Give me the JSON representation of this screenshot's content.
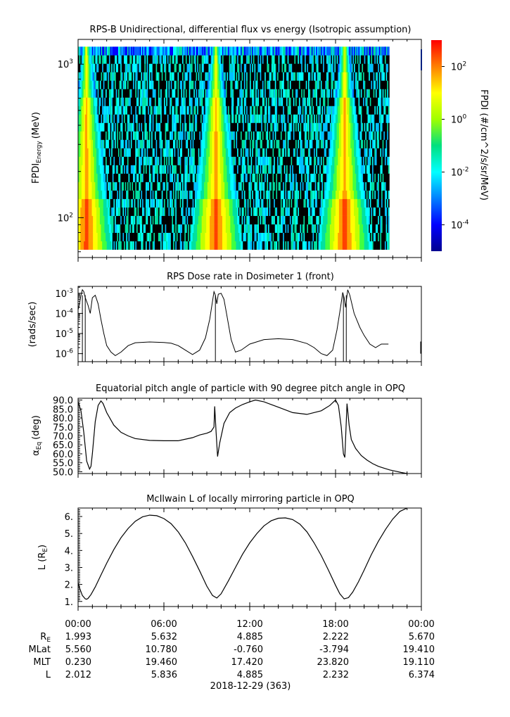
{
  "chart_data": [
    {
      "type": "heatmap",
      "title": "RPS-B  Unidirectional, differential flux vs energy (Isotropic assumption)",
      "ylabel_main": "FPDI",
      "ylabel_sub": "Energy",
      "ylabel_unit": "(MeV)",
      "y_scale": "log",
      "ylim": [
        55,
        1450
      ],
      "yticks": [
        {
          "value": 100,
          "base": "10",
          "exp": "2"
        },
        {
          "value": 1000,
          "base": "10",
          "exp": "3"
        }
      ],
      "colorbar": {
        "label": "FPDI (#/cm^2/s/sr/MeV)",
        "scale": "log",
        "zlim": [
          1e-05,
          1000.0
        ],
        "ticks": [
          {
            "value": 0.0001,
            "base": "10",
            "exp": "-4"
          },
          {
            "value": 0.01,
            "base": "10",
            "exp": "-2"
          },
          {
            "value": 1,
            "base": "10",
            "exp": "0"
          },
          {
            "value": 100,
            "base": "10",
            "exp": "2"
          }
        ]
      },
      "flux_peaks_hours": [
        0.55,
        9.6,
        18.6
      ],
      "data_end_hour": 21.7
    },
    {
      "type": "line",
      "title": "RPS  Dose rate in Dosimeter 1 (front)",
      "ylabel": "(rads/sec)",
      "y_scale": "log",
      "ylim": [
        4e-07,
        0.0022
      ],
      "yticks": [
        {
          "value": 1e-06,
          "base": "10",
          "exp": "-6"
        },
        {
          "value": 1e-05,
          "base": "10",
          "exp": "-5"
        },
        {
          "value": 0.0001,
          "base": "10",
          "exp": "-4"
        },
        {
          "value": 0.001,
          "base": "10",
          "exp": "-3"
        }
      ],
      "x": [
        0.0,
        0.1,
        0.2,
        0.3,
        0.4,
        0.5,
        0.7,
        0.85,
        1.0,
        1.2,
        1.4,
        1.6,
        1.8,
        2.0,
        2.3,
        2.6,
        3.0,
        3.5,
        4.0,
        5.0,
        6.0,
        6.5,
        7.0,
        7.5,
        8.0,
        8.5,
        8.9,
        9.2,
        9.4,
        9.5,
        9.6,
        9.7,
        9.8,
        10.0,
        10.2,
        10.4,
        10.7,
        11.0,
        11.4,
        12.0,
        13.0,
        14.0,
        15.0,
        16.0,
        16.5,
        17.0,
        17.4,
        17.8,
        18.1,
        18.35,
        18.5,
        18.6,
        18.7,
        18.85,
        19.0,
        19.3,
        19.7,
        20.0,
        20.4,
        20.8,
        21.2,
        21.7
      ],
      "values": [
        0.00015,
        0.0003,
        0.0008,
        0.0015,
        0.0012,
        0.0006,
        0.00025,
        0.0001,
        0.0006,
        0.0008,
        0.0003,
        5e-05,
        1e-05,
        2.5e-06,
        1.2e-06,
        8e-07,
        1.2e-06,
        2.5e-06,
        3.5e-06,
        3.8e-06,
        3.6e-06,
        3.3e-06,
        2.5e-06,
        1.5e-06,
        9e-07,
        1.5e-06,
        6e-06,
        5e-05,
        0.0004,
        0.0012,
        0.0008,
        0.0003,
        0.0009,
        0.001,
        0.0005,
        8e-05,
        5e-06,
        1.2e-06,
        1.5e-06,
        3e-06,
        5e-06,
        5.5e-06,
        5e-06,
        3.2e-06,
        2e-06,
        1e-06,
        8e-07,
        1.5e-06,
        1.5e-05,
        0.0002,
        0.0011,
        0.0006,
        0.0002,
        0.0015,
        0.0008,
        0.0001,
        2e-05,
        8e-06,
        3e-06,
        2e-06,
        3e-06,
        3e-06
      ]
    },
    {
      "type": "line",
      "title": "Equatorial pitch angle of particle with 90 degree pitch angle in OPQ",
      "ylabel_main": "α",
      "ylabel_sub": "Eq",
      "ylabel_unit": "(deg)",
      "ylim": [
        49,
        91
      ],
      "yticks": [
        50,
        55,
        60,
        65,
        70,
        75,
        80,
        85,
        90
      ],
      "x": [
        0.0,
        0.2,
        0.4,
        0.6,
        0.8,
        0.9,
        1.0,
        1.2,
        1.4,
        1.6,
        1.75,
        2.0,
        2.5,
        3.0,
        3.5,
        4.0,
        5.0,
        6.0,
        7.0,
        8.0,
        8.5,
        9.0,
        9.3,
        9.5,
        9.55,
        9.65,
        9.75,
        9.9,
        10.2,
        10.6,
        11.0,
        11.5,
        12.0,
        12.4,
        13.0,
        14.0,
        15.0,
        16.0,
        17.0,
        17.6,
        18.0,
        18.2,
        18.4,
        18.55,
        18.65,
        18.8,
        18.95,
        19.1,
        19.4,
        19.8,
        20.2,
        20.6,
        21.0,
        21.4,
        21.8,
        22.2,
        22.6,
        23.0
      ],
      "values": [
        89.0,
        84.0,
        72.0,
        56.0,
        51.5,
        53.0,
        60.0,
        78.0,
        87.0,
        89.5,
        88.0,
        83.0,
        76.0,
        72.0,
        70.0,
        68.5,
        67.5,
        67.3,
        67.3,
        69.0,
        70.5,
        71.5,
        72.5,
        75.0,
        86.5,
        72.0,
        58.5,
        66.0,
        77.0,
        83.0,
        85.5,
        87.5,
        89.0,
        90.0,
        89.0,
        86.0,
        83.0,
        82.0,
        84.0,
        87.0,
        90.0,
        87.0,
        75.0,
        60.0,
        58.0,
        88.0,
        76.0,
        68.0,
        63.0,
        59.0,
        56.5,
        54.5,
        53.0,
        52.0,
        51.0,
        50.3,
        49.6,
        49.0
      ]
    },
    {
      "type": "line",
      "title": "McIlwain L of locally mirroring particle in OPQ",
      "ylabel_main": "L (R",
      "ylabel_sub": "E",
      "ylabel_unit": ")",
      "ylim": [
        0.7,
        6.5
      ],
      "yticks": [
        1,
        2,
        3,
        4,
        5,
        6
      ],
      "x": [
        0.0,
        0.1,
        0.3,
        0.5,
        0.6,
        0.7,
        0.9,
        1.2,
        1.6,
        2.0,
        2.5,
        3.0,
        3.5,
        4.0,
        4.5,
        5.0,
        5.5,
        6.0,
        6.5,
        7.0,
        7.5,
        8.0,
        8.5,
        9.0,
        9.4,
        9.7,
        10.0,
        10.5,
        11.0,
        11.5,
        12.0,
        12.5,
        13.0,
        13.5,
        14.0,
        14.5,
        15.0,
        15.5,
        16.0,
        16.5,
        17.0,
        17.5,
        18.0,
        18.3,
        18.6,
        18.9,
        19.2,
        19.6,
        20.0,
        20.5,
        21.0,
        21.5,
        22.0,
        22.5,
        23.0
      ],
      "values": [
        2.1,
        1.8,
        1.35,
        1.15,
        1.13,
        1.18,
        1.4,
        1.85,
        2.55,
        3.25,
        4.05,
        4.75,
        5.3,
        5.72,
        5.98,
        6.08,
        6.05,
        5.88,
        5.58,
        5.1,
        4.45,
        3.65,
        2.8,
        1.9,
        1.35,
        1.2,
        1.45,
        2.2,
        3.0,
        3.78,
        4.45,
        5.0,
        5.45,
        5.75,
        5.9,
        5.92,
        5.82,
        5.55,
        5.1,
        4.45,
        3.7,
        2.85,
        1.95,
        1.45,
        1.15,
        1.22,
        1.55,
        2.15,
        2.85,
        3.75,
        4.55,
        5.25,
        5.85,
        6.3,
        6.5
      ]
    }
  ],
  "x_axis": {
    "tick_labels": [
      "00:00",
      "06:00",
      "12:00",
      "18:00",
      "00:00"
    ],
    "date_label": "2018-12-29 (363)"
  },
  "ephemeris": {
    "rows": [
      {
        "label": "R",
        "sub": "E",
        "values": [
          "1.993",
          "5.632",
          "4.885",
          "2.222",
          "5.670"
        ]
      },
      {
        "label": "MLat",
        "sub": "",
        "values": [
          "5.560",
          "10.780",
          "-0.760",
          "-3.794",
          "19.410"
        ]
      },
      {
        "label": "MLT",
        "sub": "",
        "values": [
          "0.230",
          "19.460",
          "17.420",
          "23.820",
          "19.110"
        ]
      },
      {
        "label": "L",
        "sub": "",
        "values": [
          "2.012",
          "5.836",
          "4.885",
          "2.232",
          "6.374"
        ]
      }
    ]
  }
}
